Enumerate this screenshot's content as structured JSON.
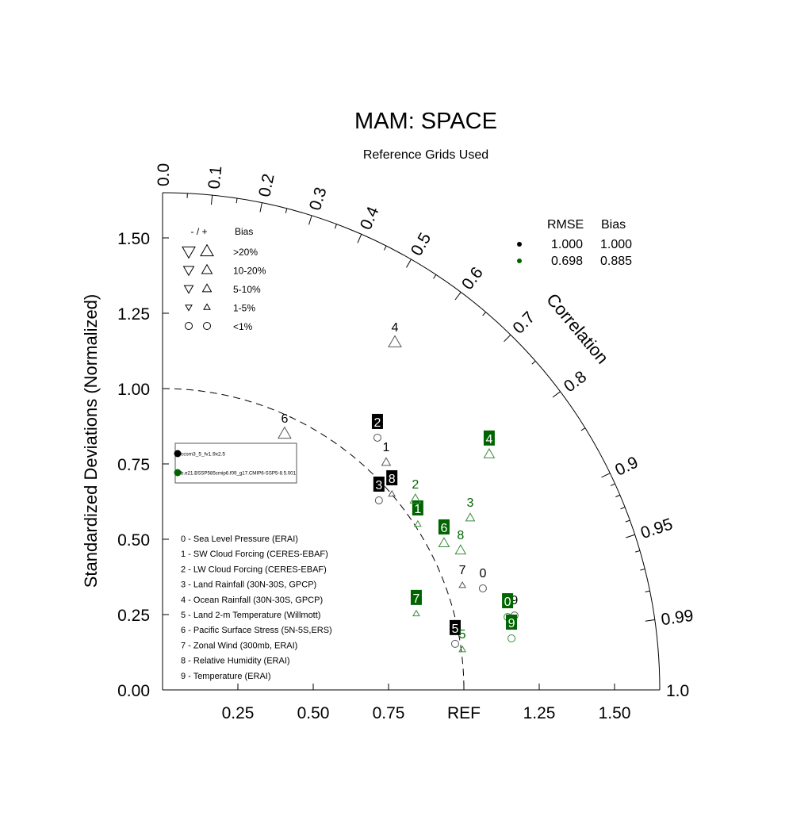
{
  "chart_data": {
    "type": "scatter",
    "subtype": "taylor-diagram",
    "title": "MAM: SPACE",
    "subtitle": "Reference Grids Used",
    "ylabel": "Standardized Deviations (Normalized)",
    "angular_label": "Correlation",
    "std_range": [
      0,
      1.65
    ],
    "y_ticks": [
      "0.00",
      "0.25",
      "0.50",
      "0.75",
      "1.00",
      "1.25",
      "1.50"
    ],
    "x_ticks": [
      "0.25",
      "0.50",
      "0.75",
      "REF",
      "1.25",
      "1.50"
    ],
    "corr_ticks": [
      "0.0",
      "0.1",
      "0.2",
      "0.3",
      "0.4",
      "0.5",
      "0.6",
      "0.7",
      "0.8",
      "0.9",
      "0.95",
      "0.99",
      "1.0"
    ],
    "bias_legend": {
      "header_left": "- / +",
      "header_right": "Bias",
      "rows": [
        ">20%",
        "10-20%",
        "5-10%",
        "1-5%",
        "<1%"
      ]
    },
    "stats_table": {
      "headers": [
        "RMSE",
        "Bias"
      ],
      "rows": [
        {
          "color": "#000000",
          "rmse": "1.000",
          "bias": "1.000"
        },
        {
          "color": "#006400",
          "rmse": "0.698",
          "bias": "0.885"
        }
      ]
    },
    "cases": [
      {
        "name": "ccsm3_5_fv1.9x2.5",
        "color": "#000000"
      },
      {
        "name": "b.e21.BSSP585cmip6.f09_g17.CMIP6-SSP5-8.5.001",
        "color": "#006400"
      }
    ],
    "variables": [
      "0 - Sea Level Pressure (ERAI)",
      "1 - SW Cloud Forcing (CERES-EBAF)",
      "2 - LW Cloud Forcing (CERES-EBAF)",
      "3 - Land Rainfall (30N-30S, GPCP)",
      "4 - Ocean Rainfall (30N-30S, GPCP)",
      "5 - Land 2-m Temperature (Willmott)",
      "6 - Pacific Surface Stress (5N-5S,ERS)",
      "7 - Zonal Wind (300mb, ERAI)",
      "8 - Relative Humidity (ERAI)",
      "9 - Temperature (ERAI)"
    ],
    "series": [
      {
        "name": "ccsm3_5_fv1.9x2.5",
        "color": "#000000",
        "points": [
          {
            "label": "0",
            "x": 1.063,
            "y": 0.337,
            "bias": "<1%",
            "boxed": false
          },
          {
            "label": "1",
            "x": 0.742,
            "y": 0.755,
            "bias": "+5-10%",
            "boxed": false
          },
          {
            "label": "2",
            "x": 0.713,
            "y": 0.837,
            "bias": "<1%",
            "boxed": true
          },
          {
            "label": "3",
            "x": 0.718,
            "y": 0.629,
            "bias": "<1%",
            "boxed": true
          },
          {
            "label": "4",
            "x": 0.771,
            "y": 1.153,
            "bias": "+>20%",
            "boxed": false
          },
          {
            "label": "5",
            "x": 0.971,
            "y": 0.153,
            "bias": "<1%",
            "boxed": true
          },
          {
            "label": "6",
            "x": 0.405,
            "y": 0.85,
            "bias": "+>20%",
            "boxed": false
          },
          {
            "label": "7",
            "x": 0.995,
            "y": 0.347,
            "bias": "+1-5%",
            "boxed": false
          },
          {
            "label": "8",
            "x": 0.761,
            "y": 0.65,
            "bias": "+1-5%",
            "boxed": true
          },
          {
            "label": "9",
            "x": 1.168,
            "y": 0.247,
            "bias": "<1%",
            "boxed": false
          }
        ]
      },
      {
        "name": "b.e21.BSSP585cmip6.f09_g17.CMIP6-SSP5-8.5.001",
        "color": "#006400",
        "points": [
          {
            "label": "0",
            "x": 1.145,
            "y": 0.242,
            "bias": "<1%",
            "boxed": true
          },
          {
            "label": "1",
            "x": 0.847,
            "y": 0.55,
            "bias": "+1-5%",
            "boxed": true
          },
          {
            "label": "2",
            "x": 0.839,
            "y": 0.632,
            "bias": "+10-20%",
            "boxed": false
          },
          {
            "label": "3",
            "x": 1.021,
            "y": 0.571,
            "bias": "+5-10%",
            "boxed": false
          },
          {
            "label": "4",
            "x": 1.084,
            "y": 0.782,
            "bias": "+10-20%",
            "boxed": true
          },
          {
            "label": "5",
            "x": 0.995,
            "y": 0.134,
            "bias": "+1-5%",
            "boxed": false
          },
          {
            "label": "6",
            "x": 0.934,
            "y": 0.487,
            "bias": "+10-20%",
            "boxed": true
          },
          {
            "label": "7",
            "x": 0.842,
            "y": 0.253,
            "bias": "+1-5%",
            "boxed": true
          },
          {
            "label": "8",
            "x": 0.989,
            "y": 0.463,
            "bias": "+10-20%",
            "boxed": false
          },
          {
            "label": "9",
            "x": 1.158,
            "y": 0.171,
            "bias": "<1%",
            "boxed": true
          }
        ]
      }
    ]
  }
}
